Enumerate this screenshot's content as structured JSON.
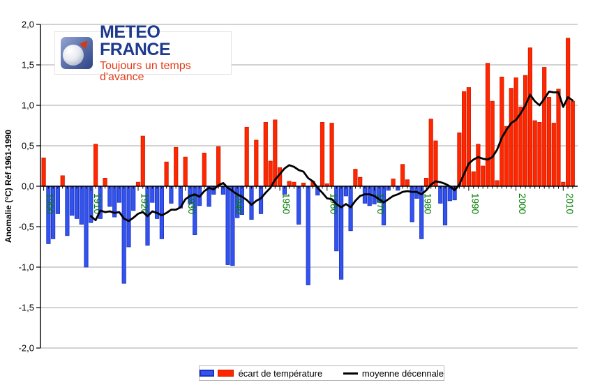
{
  "logo": {
    "title": "METEO FRANCE",
    "tagline": "Toujours un temps d'avance"
  },
  "axis": {
    "y_title": "Anomalie (°C) Réf 1961-1990",
    "y_tick_labels": [
      "2,0",
      "1,5",
      "1,0",
      "0,5",
      "0,0",
      "-0,5",
      "-1,0",
      "-1,5",
      "-2,0"
    ],
    "y_tick_values": [
      2,
      1.5,
      1,
      0.5,
      0,
      -0.5,
      -1,
      -1.5,
      -2
    ],
    "x_tick_labels": [
      "1900",
      "1910",
      "1920",
      "1930",
      "1940",
      "1950",
      "1960",
      "1970",
      "1980",
      "1990",
      "2000",
      "2010"
    ]
  },
  "legend": {
    "bars_label": "écart de température",
    "line_label": "moyenne décennale"
  },
  "colors": {
    "bar_positive": "#ff2600",
    "bar_positive_border": "#cc1e00",
    "bar_negative": "#3353ef",
    "bar_negative_border": "#1c32bb",
    "line": "#000000",
    "grid": "#a6a6a6",
    "axis": "#000000",
    "year_label": "#007d00"
  },
  "chart_data": {
    "type": "bar",
    "title": "",
    "xlabel": "",
    "ylabel": "Anomalie (°C) Réf 1961-1990",
    "ylim": [
      -2,
      2
    ],
    "grid": true,
    "legend_position": "bottom",
    "x_start_year": 1900,
    "x_end_year": 2012,
    "series": [
      {
        "name": "écart de température",
        "type": "bar",
        "start_year": 1900,
        "values": [
          0.35,
          -0.71,
          -0.65,
          -0.34,
          0.13,
          -0.61,
          -0.36,
          -0.4,
          -0.47,
          -1.0,
          -0.45,
          0.52,
          -0.4,
          0.1,
          -0.25,
          -0.38,
          -0.2,
          -1.2,
          -0.75,
          -0.3,
          0.05,
          0.62,
          -0.73,
          -0.2,
          -0.4,
          -0.65,
          0.3,
          -0.21,
          0.48,
          -0.27,
          0.36,
          -0.22,
          -0.6,
          -0.24,
          0.41,
          -0.25,
          -0.1,
          0.49,
          -0.1,
          -0.97,
          -0.98,
          -0.39,
          -0.35,
          0.73,
          -0.41,
          0.57,
          -0.34,
          0.79,
          0.31,
          0.82,
          0.23,
          -0.1,
          0.06,
          0.05,
          -0.47,
          0.04,
          -1.22,
          0.06,
          -0.11,
          0.79,
          0.03,
          0.78,
          -0.8,
          -1.15,
          -0.12,
          -0.55,
          0.21,
          0.11,
          -0.21,
          -0.24,
          -0.22,
          -0.2,
          -0.48,
          -0.05,
          0.09,
          -0.05,
          0.27,
          0.08,
          -0.44,
          -0.15,
          -0.65,
          0.1,
          0.83,
          0.56,
          -0.21,
          -0.48,
          -0.18,
          -0.17,
          0.66,
          1.17,
          1.22,
          0.18,
          0.52,
          0.25,
          1.52,
          1.05,
          0.07,
          1.35,
          0.74,
          1.21,
          1.34,
          0.98,
          1.37,
          1.71,
          0.81,
          0.79,
          1.47,
          1.1,
          0.78,
          1.2,
          0.05,
          1.83,
          1.05
        ]
      },
      {
        "name": "moyenne décennale",
        "type": "line",
        "start_year": 1910,
        "values": [
          -0.37,
          -0.42,
          -0.3,
          -0.32,
          -0.31,
          -0.33,
          -0.32,
          -0.4,
          -0.43,
          -0.39,
          -0.34,
          -0.32,
          -0.37,
          -0.31,
          -0.33,
          -0.36,
          -0.33,
          -0.29,
          -0.29,
          -0.26,
          -0.16,
          -0.12,
          -0.1,
          -0.13,
          -0.06,
          -0.02,
          -0.04,
          0.01,
          0.04,
          -0.02,
          -0.06,
          -0.1,
          -0.13,
          -0.17,
          -0.23,
          -0.18,
          -0.15,
          -0.08,
          -0.02,
          0.08,
          0.15,
          0.22,
          0.26,
          0.24,
          0.2,
          0.18,
          0.1,
          0.06,
          -0.02,
          -0.08,
          -0.15,
          -0.16,
          -0.22,
          -0.26,
          -0.22,
          -0.26,
          -0.18,
          -0.12,
          -0.1,
          -0.1,
          -0.12,
          -0.16,
          -0.2,
          -0.16,
          -0.12,
          -0.1,
          -0.07,
          -0.06,
          -0.07,
          -0.07,
          -0.1,
          -0.05,
          0.02,
          0.06,
          0.05,
          0.03,
          0.0,
          -0.05,
          0.02,
          0.15,
          0.28,
          0.33,
          0.36,
          0.34,
          0.33,
          0.36,
          0.45,
          0.6,
          0.7,
          0.78,
          0.82,
          0.9,
          1.0,
          1.13,
          1.05,
          1.0,
          1.08,
          1.17,
          1.16,
          1.16,
          0.98,
          1.1,
          1.06
        ]
      }
    ]
  }
}
